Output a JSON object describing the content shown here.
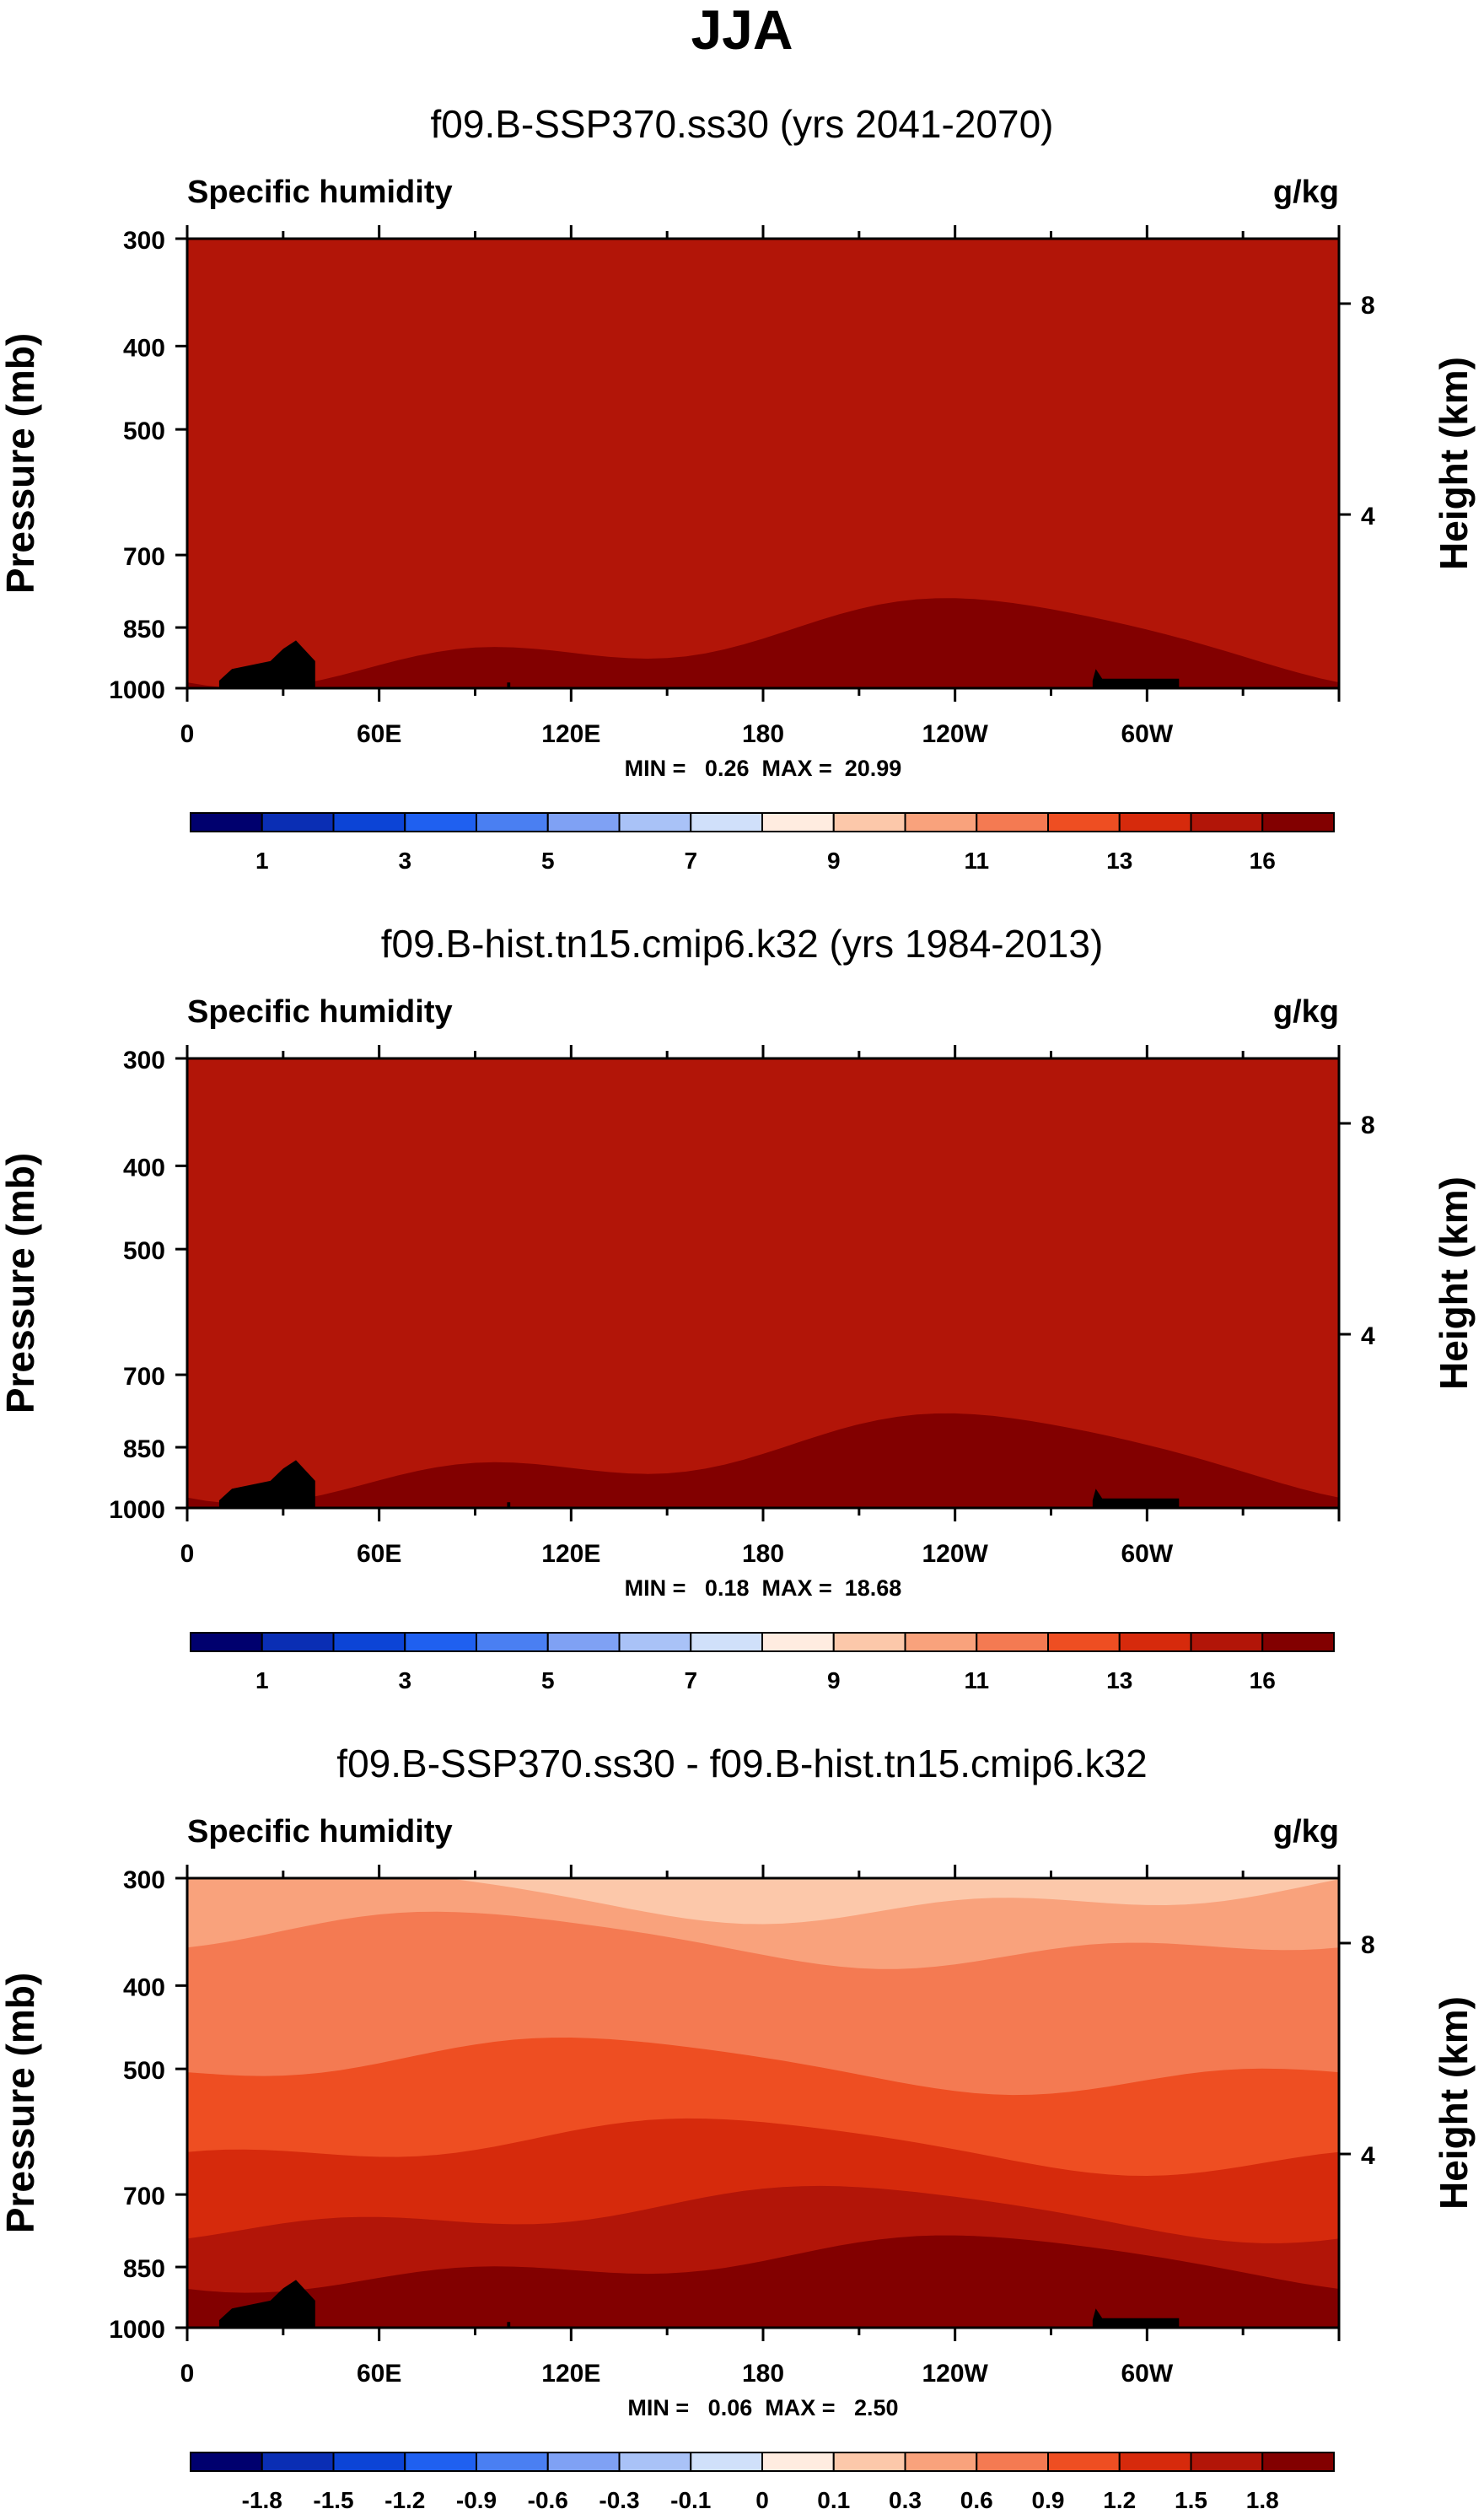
{
  "season_title": "JJA",
  "chart_data": [
    {
      "type": "heatmap",
      "title": "f09.B-SSP370.ss30 (yrs 2041-2070)",
      "variable_label": "Specific humidity",
      "units": "g/kg",
      "ylabel": "Pressure (mb)",
      "y2label": "Height (km)",
      "yticks": [
        300,
        400,
        500,
        700,
        850,
        1000
      ],
      "ylim": [
        1000,
        300
      ],
      "y2ticks": [
        8,
        4
      ],
      "xticks": [
        "0",
        "60E",
        "120E",
        "180",
        "120W",
        "60W"
      ],
      "xlim": [
        0,
        360
      ],
      "stats": "MIN =   0.26  MAX =  20.99",
      "colorbar_labels": [
        "1",
        "3",
        "5",
        "7",
        "9",
        "11",
        "13",
        "16"
      ],
      "colors": [
        "#00006e",
        "#0a2eb4",
        "#0c44d6",
        "#1f60f0",
        "#4a7ff2",
        "#7fa1f4",
        "#a9c2f7",
        "#d0e0fa",
        "#ffece0",
        "#fcc8aa",
        "#f9a27c",
        "#f47a52",
        "#ee4e22",
        "#d62a0c",
        "#b21508",
        "#820000"
      ]
    },
    {
      "type": "heatmap",
      "title": "f09.B-hist.tn15.cmip6.k32 (yrs 1984-2013)",
      "variable_label": "Specific humidity",
      "units": "g/kg",
      "ylabel": "Pressure (mb)",
      "y2label": "Height (km)",
      "yticks": [
        300,
        400,
        500,
        700,
        850,
        1000
      ],
      "ylim": [
        1000,
        300
      ],
      "y2ticks": [
        8,
        4
      ],
      "xticks": [
        "0",
        "60E",
        "120E",
        "180",
        "120W",
        "60W"
      ],
      "xlim": [
        0,
        360
      ],
      "stats": "MIN =   0.18  MAX =  18.68",
      "colorbar_labels": [
        "1",
        "3",
        "5",
        "7",
        "9",
        "11",
        "13",
        "16"
      ],
      "colors": [
        "#00006e",
        "#0a2eb4",
        "#0c44d6",
        "#1f60f0",
        "#4a7ff2",
        "#7fa1f4",
        "#a9c2f7",
        "#d0e0fa",
        "#ffece0",
        "#fcc8aa",
        "#f9a27c",
        "#f47a52",
        "#ee4e22",
        "#d62a0c",
        "#b21508",
        "#820000"
      ]
    },
    {
      "type": "heatmap",
      "title": "f09.B-SSP370.ss30 - f09.B-hist.tn15.cmip6.k32",
      "variable_label": "Specific humidity",
      "units": "g/kg",
      "ylabel": "Pressure (mb)",
      "y2label": "Height (km)",
      "yticks": [
        300,
        400,
        500,
        700,
        850,
        1000
      ],
      "ylim": [
        1000,
        300
      ],
      "y2ticks": [
        8,
        4
      ],
      "xticks": [
        "0",
        "60E",
        "120E",
        "180",
        "120W",
        "60W"
      ],
      "xlim": [
        0,
        360
      ],
      "stats": "MIN =   0.06  MAX =   2.50",
      "colorbar_labels": [
        "-1.8",
        "-1.5",
        "-1.2",
        "-0.9",
        "-0.6",
        "-0.3",
        "-0.1",
        "0",
        "0.1",
        "0.3",
        "0.6",
        "0.9",
        "1.2",
        "1.5",
        "1.8"
      ],
      "colors": [
        "#00006e",
        "#0a2eb4",
        "#0c44d6",
        "#1f60f0",
        "#4a7ff2",
        "#7fa1f4",
        "#a9c2f7",
        "#d0e0fa",
        "#ffece0",
        "#fcc8aa",
        "#f9a27c",
        "#f47a52",
        "#ee4e22",
        "#d62a0c",
        "#b21508",
        "#820000"
      ]
    }
  ]
}
